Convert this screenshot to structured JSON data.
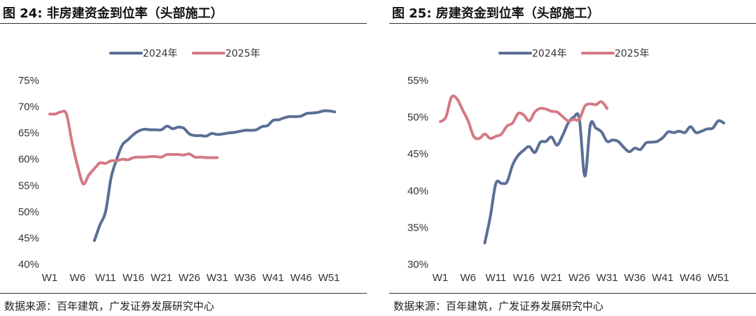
{
  "source": "数据来源：百年建筑，广发证券发展研究中心",
  "colors": {
    "series_2024": "#5b6e96",
    "series_2025": "#d37a84"
  },
  "chart_data": [
    {
      "type": "line",
      "title": "图 24:  非房建资金到位率（头部施工）",
      "xlabel": "",
      "ylabel": "",
      "ylim": [
        0.4,
        0.75
      ],
      "yticks": [
        "75%",
        "70%",
        "65%",
        "60%",
        "55%",
        "50%",
        "45%",
        "40%"
      ],
      "ytick_values": [
        0.75,
        0.7,
        0.65,
        0.6,
        0.55,
        0.5,
        0.45,
        0.4
      ],
      "xlim": [
        1,
        53
      ],
      "xticks": [
        "W1",
        "W6",
        "W11",
        "W16",
        "W21",
        "W26",
        "W31",
        "W36",
        "W41",
        "W46",
        "W51"
      ],
      "xtick_values": [
        1,
        6,
        11,
        16,
        21,
        26,
        31,
        36,
        41,
        46,
        51
      ],
      "legend": "top-center",
      "grid": false,
      "series": [
        {
          "name": "2024年",
          "x": [
            9,
            10,
            11,
            12,
            13,
            14,
            15,
            16,
            17,
            18,
            19,
            20,
            21,
            22,
            23,
            24,
            25,
            26,
            27,
            28,
            29,
            30,
            31,
            32,
            33,
            34,
            35,
            36,
            37,
            38,
            39,
            40,
            41,
            42,
            43,
            44,
            45,
            46,
            47,
            48,
            49,
            50,
            51,
            52
          ],
          "values": [
            0.445,
            0.475,
            0.5,
            0.565,
            0.6,
            0.627,
            0.637,
            0.647,
            0.654,
            0.657,
            0.656,
            0.656,
            0.656,
            0.663,
            0.658,
            0.661,
            0.659,
            0.648,
            0.645,
            0.645,
            0.644,
            0.649,
            0.647,
            0.648,
            0.65,
            0.651,
            0.653,
            0.655,
            0.655,
            0.656,
            0.662,
            0.664,
            0.674,
            0.675,
            0.679,
            0.681,
            0.681,
            0.682,
            0.687,
            0.688,
            0.689,
            0.692,
            0.692,
            0.69
          ]
        },
        {
          "name": "2025年",
          "x": [
            1,
            2,
            3,
            4,
            5,
            6,
            7,
            8,
            9,
            10,
            11,
            12,
            13,
            14,
            15,
            16,
            17,
            18,
            19,
            20,
            21,
            22,
            23,
            24,
            25,
            26,
            27,
            28,
            29,
            30,
            31
          ],
          "values": [
            0.686,
            0.686,
            0.69,
            0.686,
            0.632,
            0.587,
            0.553,
            0.57,
            0.582,
            0.593,
            0.592,
            0.597,
            0.597,
            0.6,
            0.599,
            0.603,
            0.604,
            0.604,
            0.605,
            0.605,
            0.604,
            0.609,
            0.609,
            0.609,
            0.608,
            0.61,
            0.604,
            0.604,
            0.603,
            0.603,
            0.603
          ]
        }
      ]
    },
    {
      "type": "line",
      "title": "图 25:  房建资金到位率（头部施工）",
      "xlabel": "",
      "ylabel": "",
      "ylim": [
        0.3,
        0.55
      ],
      "yticks": [
        "55%",
        "50%",
        "45%",
        "40%",
        "35%",
        "30%"
      ],
      "ytick_values": [
        0.55,
        0.5,
        0.45,
        0.4,
        0.35,
        0.3
      ],
      "xlim": [
        1,
        53
      ],
      "xticks": [
        "W1",
        "W6",
        "W11",
        "W16",
        "W21",
        "W26",
        "W31",
        "W36",
        "W41",
        "W46",
        "W51"
      ],
      "xtick_values": [
        1,
        6,
        11,
        16,
        21,
        26,
        31,
        36,
        41,
        46,
        51
      ],
      "legend": "top-center",
      "grid": false,
      "series": [
        {
          "name": "2024年",
          "x": [
            9,
            10,
            11,
            12,
            13,
            14,
            15,
            16,
            17,
            18,
            19,
            20,
            21,
            22,
            23,
            24,
            25,
            26,
            27,
            28,
            29,
            30,
            31,
            32,
            33,
            34,
            35,
            36,
            37,
            38,
            39,
            40,
            41,
            42,
            43,
            44,
            45,
            46,
            47,
            48,
            49,
            50,
            51,
            52
          ],
          "values": [
            0.329,
            0.365,
            0.41,
            0.41,
            0.412,
            0.435,
            0.448,
            0.455,
            0.46,
            0.452,
            0.466,
            0.467,
            0.473,
            0.462,
            0.475,
            0.492,
            0.5,
            0.498,
            0.42,
            0.49,
            0.485,
            0.48,
            0.467,
            0.469,
            0.467,
            0.459,
            0.453,
            0.458,
            0.456,
            0.465,
            0.466,
            0.467,
            0.472,
            0.48,
            0.479,
            0.481,
            0.479,
            0.487,
            0.479,
            0.481,
            0.484,
            0.485,
            0.495,
            0.492
          ]
        },
        {
          "name": "2025年",
          "x": [
            1,
            2,
            3,
            4,
            5,
            6,
            7,
            8,
            9,
            10,
            11,
            12,
            13,
            14,
            15,
            16,
            17,
            18,
            19,
            20,
            21,
            22,
            23,
            24,
            25,
            26,
            27,
            28,
            29,
            30,
            31
          ],
          "values": [
            0.494,
            0.5,
            0.527,
            0.525,
            0.51,
            0.495,
            0.474,
            0.471,
            0.477,
            0.471,
            0.474,
            0.477,
            0.488,
            0.492,
            0.505,
            0.503,
            0.495,
            0.507,
            0.512,
            0.511,
            0.508,
            0.507,
            0.501,
            0.495,
            0.497,
            0.497,
            0.515,
            0.518,
            0.517,
            0.521,
            0.512
          ]
        }
      ]
    }
  ]
}
